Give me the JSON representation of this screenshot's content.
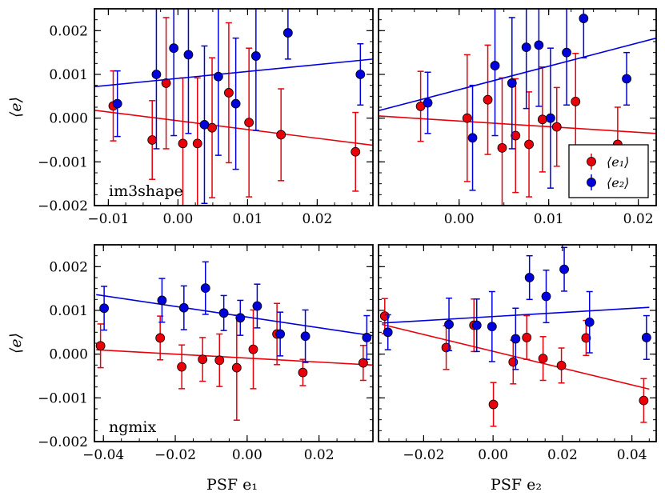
{
  "colors": {
    "e1": "#e8000b",
    "e2": "#0000dd"
  },
  "legend": {
    "e1": "⟨e₁⟩",
    "e2": "⟨e₂⟩"
  },
  "chart_data": [
    {
      "type": "scatter",
      "panel": "top-left",
      "annotation": "im3shape",
      "ylabel": "⟨e⟩",
      "xlim": [
        -0.012,
        0.028
      ],
      "ylim": [
        -0.002,
        0.0025
      ],
      "xticks": [
        -0.01,
        0.0,
        0.01,
        0.02
      ],
      "xtick_labels": [
        "−0.01",
        "0.00",
        "0.01",
        "0.02"
      ],
      "yticks": [
        -0.002,
        -0.001,
        0.0,
        0.001,
        0.002
      ],
      "ytick_labels": [
        "−0.002",
        "−0.001",
        "0.000",
        "0.001",
        "0.002"
      ],
      "series": [
        {
          "key": "e1",
          "points": [
            [
              -0.0093,
              0.00028,
              0.0008
            ],
            [
              -0.0037,
              -0.0005,
              0.0009
            ],
            [
              -0.0017,
              0.0008,
              0.0015
            ],
            [
              0.0007,
              -0.00058,
              0.0015
            ],
            [
              0.0028,
              -0.00058,
              0.0015
            ],
            [
              0.0049,
              -0.00022,
              0.0016
            ],
            [
              0.0073,
              0.00058,
              0.0016
            ],
            [
              0.0102,
              -0.0001,
              0.0017
            ],
            [
              0.0148,
              -0.00038,
              0.00105
            ],
            [
              0.0255,
              -0.00077,
              0.0009
            ]
          ],
          "fit": [
            [
              -0.012,
              0.00018
            ],
            [
              0.028,
              -0.00062
            ]
          ]
        },
        {
          "key": "e2",
          "points": [
            [
              -0.0087,
              0.00033,
              0.00075
            ],
            [
              -0.0031,
              0.001,
              0.0017
            ],
            [
              -0.0006,
              0.0016,
              0.002
            ],
            [
              0.0015,
              0.00145,
              0.0018
            ],
            [
              0.0038,
              -0.00015,
              0.0018
            ],
            [
              0.0058,
              0.00095,
              0.0018
            ],
            [
              0.0083,
              0.00033,
              0.0015
            ],
            [
              0.0112,
              0.00142,
              0.0017
            ],
            [
              0.0158,
              0.00195,
              0.0006
            ],
            [
              0.0262,
              0.001,
              0.0007
            ]
          ],
          "fit": [
            [
              -0.012,
              0.00072
            ],
            [
              0.028,
              0.00135
            ]
          ]
        }
      ]
    },
    {
      "type": "scatter",
      "panel": "top-right",
      "xlim": [
        -0.009,
        0.022
      ],
      "ylim": [
        -0.002,
        0.0025
      ],
      "xticks": [
        0.0,
        0.01,
        0.02
      ],
      "xtick_labels": [
        "0.00",
        "0.01",
        "0.02"
      ],
      "yticks": [
        -0.002,
        -0.001,
        0.0,
        0.001,
        0.002
      ],
      "legend_position": "lower-right",
      "series": [
        {
          "key": "e1",
          "points": [
            [
              -0.0043,
              0.00027,
              0.0008
            ],
            [
              0.0009,
              0.0,
              0.00145
            ],
            [
              0.0032,
              0.00042,
              0.00125
            ],
            [
              0.0048,
              -0.00068,
              0.0016
            ],
            [
              0.0063,
              -0.0004,
              0.0013
            ],
            [
              0.0078,
              -0.0006,
              0.0012
            ],
            [
              0.0093,
              -3e-05,
              0.0012
            ],
            [
              0.0109,
              -0.0002,
              0.0009
            ],
            [
              0.013,
              0.00038,
              0.0011
            ],
            [
              0.0177,
              -0.0006,
              0.00085
            ]
          ],
          "fit": [
            [
              -0.009,
              5e-05
            ],
            [
              0.022,
              -0.00035
            ]
          ]
        },
        {
          "key": "e2",
          "points": [
            [
              -0.0035,
              0.00035,
              0.0007
            ],
            [
              0.0015,
              -0.00045,
              0.0012
            ],
            [
              0.004,
              0.0012,
              0.0016
            ],
            [
              0.0059,
              0.0008,
              0.0015
            ],
            [
              0.0075,
              0.00162,
              0.0014
            ],
            [
              0.0089,
              0.00167,
              0.0014
            ],
            [
              0.0102,
              0.0,
              0.0016
            ],
            [
              0.012,
              0.0015,
              0.0012
            ],
            [
              0.0139,
              0.00228,
              0.0009
            ],
            [
              0.0187,
              0.0009,
              0.0006
            ]
          ],
          "fit": [
            [
              -0.009,
              0.00017
            ],
            [
              0.022,
              0.00183
            ]
          ]
        }
      ]
    },
    {
      "type": "scatter",
      "panel": "bottom-left",
      "annotation": "ngmix",
      "ylabel": "⟨e⟩",
      "xlabel": "PSF e₁",
      "xlim": [
        -0.0425,
        0.035
      ],
      "ylim": [
        -0.002,
        0.0025
      ],
      "xticks": [
        -0.04,
        -0.02,
        0.0,
        0.02
      ],
      "xtick_labels": [
        "−0.04",
        "−0.02",
        "0.00",
        "0.02"
      ],
      "yticks": [
        -0.002,
        -0.001,
        0.0,
        0.001,
        0.002
      ],
      "ytick_labels": [
        "−0.002",
        "−0.001",
        "0.000",
        "0.001",
        "0.002"
      ],
      "series": [
        {
          "key": "e1",
          "points": [
            [
              -0.0408,
              0.00019,
              0.0005
            ],
            [
              -0.0242,
              0.00037,
              0.0005
            ],
            [
              -0.0182,
              -0.00029,
              0.0005
            ],
            [
              -0.0124,
              -0.00012,
              0.0005
            ],
            [
              -0.0077,
              -0.00014,
              0.0006
            ],
            [
              -0.0029,
              -0.00031,
              0.0012
            ],
            [
              0.0017,
              0.00011,
              0.0009
            ],
            [
              0.0083,
              0.00046,
              0.0007
            ],
            [
              0.0155,
              -0.00042,
              0.0003
            ],
            [
              0.0323,
              -0.0002,
              0.0004
            ]
          ],
          "fit": [
            [
              -0.042,
              0.0001
            ],
            [
              0.035,
              -0.00025
            ]
          ]
        },
        {
          "key": "e2",
          "points": [
            [
              -0.0398,
              0.00105,
              0.0005
            ],
            [
              -0.0237,
              0.00123,
              0.0005
            ],
            [
              -0.0176,
              0.00106,
              0.0005
            ],
            [
              -0.0116,
              0.00151,
              0.0006
            ],
            [
              -0.0065,
              0.00094,
              0.0004
            ],
            [
              -0.0019,
              0.00083,
              0.0004
            ],
            [
              0.0028,
              0.0011,
              0.0005
            ],
            [
              0.0092,
              0.00046,
              0.0005
            ],
            [
              0.0162,
              0.00041,
              0.0006
            ],
            [
              0.0333,
              0.00038,
              0.0005
            ]
          ],
          "fit": [
            [
              -0.042,
              0.00136
            ],
            [
              0.035,
              0.00042
            ]
          ]
        }
      ]
    },
    {
      "type": "scatter",
      "panel": "bottom-right",
      "xlabel": "PSF e₂",
      "xlim": [
        -0.033,
        0.047
      ],
      "ylim": [
        -0.002,
        0.0025
      ],
      "xticks": [
        -0.02,
        0.0,
        0.02,
        0.04
      ],
      "xtick_labels": [
        "−0.02",
        "0.00",
        "0.02",
        "0.04"
      ],
      "yticks": [
        -0.002,
        -0.001,
        0.0,
        0.001,
        0.002
      ],
      "series": [
        {
          "key": "e1",
          "points": [
            [
              -0.0312,
              0.00087,
              0.0004
            ],
            [
              -0.0135,
              0.00015,
              0.0005
            ],
            [
              -0.0055,
              0.00066,
              0.0006
            ],
            [
              0.0001,
              -0.00115,
              0.0005
            ],
            [
              0.0058,
              -0.00018,
              0.0005
            ],
            [
              0.0097,
              0.00038,
              0.0005
            ],
            [
              0.0144,
              -0.0001,
              0.0005
            ],
            [
              0.0197,
              -0.00026,
              0.0004
            ],
            [
              0.0268,
              0.00037,
              0.0004
            ],
            [
              0.0434,
              -0.00106,
              0.0005
            ]
          ],
          "fit": [
            [
              -0.032,
              0.00068
            ],
            [
              0.045,
              -0.0008
            ]
          ]
        },
        {
          "key": "e2",
          "points": [
            [
              -0.0303,
              0.0005,
              0.0004
            ],
            [
              -0.0127,
              0.00068,
              0.0006
            ],
            [
              -0.0047,
              0.00066,
              0.0006
            ],
            [
              -0.0003,
              0.00063,
              0.0008
            ],
            [
              0.0065,
              0.00035,
              0.0007
            ],
            [
              0.0105,
              0.00175,
              0.0005
            ],
            [
              0.0153,
              0.00132,
              0.0006
            ],
            [
              0.0205,
              0.00194,
              0.0005
            ],
            [
              0.0278,
              0.00073,
              0.0007
            ],
            [
              0.0442,
              0.00038,
              0.0005
            ]
          ],
          "fit": [
            [
              -0.032,
              0.00071
            ],
            [
              0.045,
              0.00107
            ]
          ]
        }
      ]
    }
  ]
}
